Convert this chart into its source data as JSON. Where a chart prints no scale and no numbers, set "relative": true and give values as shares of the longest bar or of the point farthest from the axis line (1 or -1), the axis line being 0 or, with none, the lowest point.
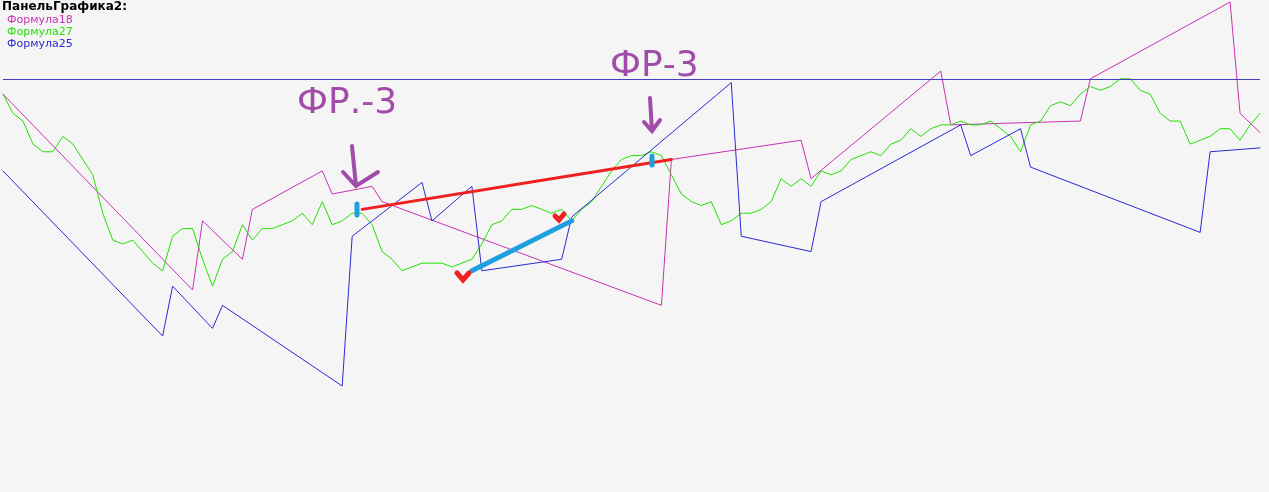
{
  "chart_data": {
    "type": "line",
    "title": "ПанельГрафика2:",
    "relative": true,
    "legend": "top left",
    "marker": "none",
    "categories": [
      null,
      null,
      null,
      null,
      null,
      null,
      null,
      null,
      null,
      null,
      null,
      null,
      null,
      null,
      null,
      null,
      null,
      null,
      null,
      null,
      null,
      null,
      null,
      null,
      null,
      null,
      null,
      null,
      null,
      null,
      null,
      null,
      null,
      null,
      null,
      null,
      null,
      null,
      null,
      null,
      null,
      null,
      null,
      null,
      null,
      null,
      null,
      null,
      null,
      null,
      null,
      null,
      null,
      null,
      null,
      null,
      null,
      null,
      null,
      null,
      null,
      null,
      null,
      null,
      null,
      null,
      null,
      null,
      null,
      null,
      null,
      null,
      null,
      null,
      null,
      null,
      null,
      null,
      null,
      null,
      null,
      null,
      null,
      null,
      null,
      null,
      null,
      null,
      null,
      null,
      null,
      null,
      null,
      null,
      null,
      null,
      null,
      null,
      null,
      null,
      null,
      null,
      null,
      null,
      null,
      null,
      null,
      null,
      null,
      null,
      null,
      null,
      null,
      null,
      null,
      null,
      null,
      null,
      null,
      null,
      null,
      null,
      null,
      null,
      null,
      null,
      null
    ],
    "series": [
      {
        "name": "Формула18",
        "color": "#c832b4",
        "values": [
          0.76,
          null,
          null,
          null,
          null,
          null,
          null,
          null,
          null,
          null,
          null,
          null,
          null,
          null,
          null,
          null,
          null,
          null,
          null,
          0.25,
          0.43,
          null,
          null,
          null,
          0.33,
          0.46,
          null,
          null,
          null,
          null,
          null,
          null,
          0.56,
          0.5,
          null,
          null,
          null,
          0.52,
          0.48,
          null,
          null,
          null,
          null,
          null,
          null,
          null,
          null,
          null,
          null,
          null,
          null,
          null,
          null,
          null,
          null,
          null,
          null,
          null,
          null,
          null,
          null,
          null,
          null,
          null,
          null,
          null,
          0.21,
          0.59,
          null,
          null,
          null,
          null,
          null,
          null,
          null,
          null,
          null,
          null,
          null,
          null,
          0.64,
          0.54,
          null,
          null,
          null,
          null,
          null,
          null,
          null,
          null,
          null,
          null,
          null,
          null,
          0.82,
          0.68,
          null,
          null,
          null,
          null,
          null,
          null,
          null,
          null,
          null,
          null,
          null,
          null,
          0.69,
          0.8,
          null,
          null,
          null,
          null,
          null,
          null,
          null,
          null,
          null,
          null,
          null,
          null,
          null,
          1,
          0.71,
          null,
          0.66
        ]
      },
      {
        "name": "Формула27",
        "color": "#22e000",
        "values": [
          0.76,
          0.71,
          0.69,
          0.63,
          0.61,
          0.61,
          0.65,
          0.63,
          0.59,
          0.55,
          0.45,
          0.38,
          0.37,
          0.38,
          0.35,
          0.32,
          0.3,
          0.39,
          0.41,
          0.41,
          0.33,
          0.26,
          0.33,
          0.35,
          0.42,
          0.38,
          0.41,
          0.41,
          0.42,
          0.43,
          0.45,
          0.42,
          0.48,
          0.42,
          0.43,
          0.45,
          0.45,
          0.42,
          0.35,
          0.33,
          0.3,
          0.31,
          0.32,
          0.32,
          0.32,
          0.31,
          0.32,
          0.33,
          0.37,
          0.42,
          0.43,
          0.46,
          0.46,
          0.47,
          0.46,
          0.45,
          0.46,
          0.43,
          0.46,
          0.48,
          0.52,
          0.56,
          0.59,
          0.6,
          0.6,
          0.61,
          0.6,
          0.55,
          0.5,
          0.48,
          0.47,
          0.48,
          0.42,
          0.43,
          0.45,
          0.45,
          0.46,
          0.48,
          0.54,
          0.52,
          0.54,
          0.52,
          0.56,
          0.55,
          0.56,
          0.59,
          0.6,
          0.61,
          0.6,
          0.63,
          0.64,
          0.67,
          0.65,
          0.67,
          0.68,
          0.68,
          0.69,
          0.68,
          0.68,
          0.69,
          0.67,
          0.65,
          0.61,
          0.68,
          0.69,
          0.73,
          0.74,
          0.73,
          0.76,
          0.78,
          0.77,
          0.78,
          0.8,
          0.8,
          0.77,
          0.76,
          0.71,
          0.69,
          0.69,
          0.63,
          0.64,
          0.65,
          0.67,
          0.67,
          0.64,
          0.68,
          0.71
        ]
      },
      {
        "name": "Формула25",
        "color": "#2a2ad2",
        "values": [
          0.56,
          null,
          null,
          null,
          null,
          null,
          null,
          null,
          null,
          null,
          null,
          null,
          null,
          null,
          null,
          null,
          0.13,
          0.26,
          null,
          null,
          null,
          0.15,
          0.21,
          null,
          null,
          null,
          null,
          null,
          null,
          null,
          null,
          null,
          null,
          null,
          0,
          0.39,
          null,
          null,
          null,
          null,
          null,
          null,
          0.53,
          0.43,
          null,
          null,
          null,
          0.52,
          0.3,
          null,
          null,
          null,
          null,
          null,
          null,
          null,
          0.33,
          0.44,
          null,
          null,
          null,
          null,
          null,
          null,
          null,
          null,
          null,
          null,
          null,
          null,
          null,
          null,
          null,
          0.79,
          0.39,
          null,
          null,
          null,
          null,
          null,
          null,
          0.35,
          0.48,
          null,
          null,
          null,
          null,
          null,
          null,
          null,
          null,
          null,
          null,
          null,
          null,
          null,
          0.68,
          0.6,
          null,
          null,
          null,
          null,
          0.67,
          0.57,
          null,
          null,
          null,
          null,
          null,
          null,
          null,
          null,
          null,
          null,
          null,
          null,
          null,
          null,
          null,
          null,
          0.4,
          0.61,
          null,
          null,
          null,
          null,
          0.62
        ]
      },
      {
        "color": "#f02020",
        "values": [
          null,
          null,
          null,
          null,
          null,
          null,
          null,
          null,
          null,
          null,
          null,
          null,
          null,
          null,
          null,
          null,
          null,
          null,
          null,
          null,
          null,
          null,
          null,
          null,
          null,
          null,
          null,
          null,
          null,
          null,
          null,
          null,
          null,
          null,
          null,
          null,
          0.46,
          null,
          null,
          null,
          null,
          null,
          null,
          null,
          null,
          null,
          null,
          null,
          null,
          null,
          null,
          null,
          null,
          null,
          null,
          null,
          null,
          null,
          null,
          null,
          null,
          null,
          null,
          null,
          null,
          null,
          null,
          0.59,
          null,
          null,
          null,
          null,
          null,
          null,
          null,
          null,
          null,
          null,
          null,
          null,
          null,
          null,
          null,
          null,
          null,
          null,
          null,
          null,
          null,
          null,
          null,
          null,
          null,
          null,
          null,
          null,
          null,
          null,
          null,
          null,
          null,
          null,
          null,
          null,
          null,
          null,
          null,
          null,
          null,
          null,
          null,
          null,
          null,
          null,
          null,
          null,
          null,
          null,
          null,
          null,
          null,
          null,
          null,
          null,
          null,
          null,
          null
        ]
      },
      {
        "color": "#1ea0e0",
        "values": [
          null,
          null,
          null,
          null,
          null,
          null,
          null,
          null,
          null,
          null,
          null,
          null,
          null,
          null,
          null,
          null,
          null,
          null,
          null,
          null,
          null,
          null,
          null,
          null,
          null,
          null,
          null,
          null,
          null,
          null,
          null,
          null,
          null,
          null,
          null,
          null,
          null,
          null,
          null,
          null,
          null,
          null,
          null,
          null,
          null,
          null,
          null,
          0.3,
          null,
          null,
          null,
          null,
          null,
          null,
          null,
          null,
          null,
          0.43,
          null,
          null,
          null,
          null,
          null,
          null,
          null,
          null,
          null,
          null,
          null,
          null,
          null,
          null,
          null,
          null,
          null,
          null,
          null,
          null,
          null,
          null,
          null,
          null,
          null,
          null,
          null,
          null,
          null,
          null,
          null,
          null,
          null,
          null,
          null,
          null,
          null,
          null,
          null,
          null,
          null,
          null,
          null,
          null,
          null,
          null,
          null,
          null,
          null,
          null,
          null,
          null,
          null,
          null,
          null,
          null,
          null,
          null,
          null,
          null,
          null,
          null,
          null,
          null,
          null,
          null,
          null,
          null,
          null
        ]
      }
    ],
    "ref_lines": [
      {
        "axis": "y",
        "value": 0.8,
        "color": "#4040c0"
      }
    ],
    "annotations": [
      "ФР.-3",
      "ФР-3"
    ]
  }
}
